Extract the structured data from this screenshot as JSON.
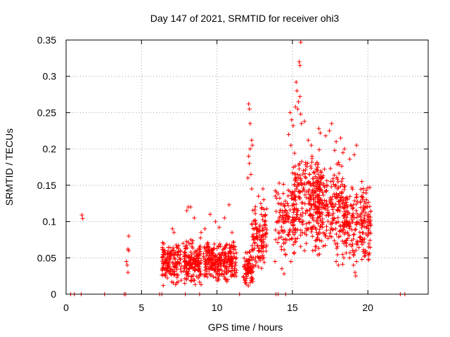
{
  "chart_data": {
    "type": "scatter",
    "title": "Day 147 of 2021, SRMTID for receiver ohi3",
    "xlabel": "GPS time / hours",
    "ylabel": "SRMTID / TECUs",
    "xlim": [
      0,
      24
    ],
    "ylim": [
      0,
      0.35
    ],
    "x_ticks": [
      "0",
      "5",
      "10",
      "15",
      "20"
    ],
    "y_ticks": [
      "0",
      "0.05",
      "0.1",
      "0.15",
      "0.2",
      "0.25",
      "0.3",
      "0.35"
    ],
    "grid": true,
    "marker": "+",
    "series": [
      {
        "name": "SRMTID",
        "color": "#ff0000",
        "points": [
          [
            0.3,
            0
          ],
          [
            0.55,
            0
          ],
          [
            1.0,
            0
          ],
          [
            2.55,
            0
          ],
          [
            3.85,
            0
          ],
          [
            3.95,
            0
          ],
          [
            6.2,
            0
          ],
          [
            6.35,
            0
          ],
          [
            7.9,
            0
          ],
          [
            8.85,
            0
          ],
          [
            11.5,
            0
          ],
          [
            13.9,
            0
          ],
          [
            14.05,
            0
          ],
          [
            14.55,
            0
          ],
          [
            22.15,
            0
          ],
          [
            22.45,
            0
          ],
          [
            1.05,
            0.109
          ],
          [
            1.1,
            0.104
          ],
          [
            4.0,
            0.045
          ],
          [
            4.05,
            0.04
          ],
          [
            4.1,
            0.062
          ],
          [
            4.15,
            0.08
          ],
          [
            4.1,
            0.03
          ],
          [
            4.15,
            0.06
          ],
          [
            10.8,
            0.123
          ],
          [
            14.05,
            0.138
          ],
          [
            15.25,
            0.292
          ],
          [
            15.55,
            0.347
          ],
          [
            15.45,
            0.32
          ],
          [
            15.5,
            0.315
          ],
          [
            12.1,
            0.262
          ],
          [
            12.15,
            0.255
          ],
          [
            12.2,
            0.235
          ],
          [
            12.15,
            0.18
          ],
          [
            12.25,
            0.165
          ],
          [
            12.3,
            0.145
          ],
          [
            12.2,
            0.2
          ],
          [
            12.35,
            0.205
          ],
          [
            12.05,
            0.16
          ],
          [
            12.1,
            0.19
          ],
          [
            12.3,
            0.212
          ],
          [
            15.3,
            0.28
          ],
          [
            15.4,
            0.265
          ],
          [
            15.35,
            0.255
          ],
          [
            15.6,
            0.235
          ],
          [
            15.55,
            0.248
          ],
          [
            15.2,
            0.258
          ],
          [
            15.5,
            0.272
          ],
          [
            15.8,
            0.238
          ],
          [
            14.85,
            0.25
          ],
          [
            14.95,
            0.24
          ],
          [
            14.75,
            0.22
          ],
          [
            14.9,
            0.205
          ],
          [
            15.05,
            0.232
          ],
          [
            17.6,
            0.235
          ],
          [
            17.45,
            0.225
          ],
          [
            17.2,
            0.218
          ],
          [
            16.75,
            0.228
          ],
          [
            16.85,
            0.222
          ],
          [
            17.9,
            0.21
          ],
          [
            18.2,
            0.215
          ],
          [
            18.45,
            0.2
          ],
          [
            19.25,
            0.205
          ],
          [
            19.1,
            0.192
          ],
          [
            18.8,
            0.186
          ],
          [
            18.35,
            0.195
          ],
          [
            17.8,
            0.198
          ],
          [
            16.25,
            0.205
          ],
          [
            16.05,
            0.212
          ],
          [
            16.3,
            0.19
          ],
          [
            13.05,
            0.145
          ],
          [
            13.1,
            0.13
          ],
          [
            12.95,
            0.118
          ],
          [
            13.2,
            0.108
          ],
          [
            12.85,
            0.095
          ],
          [
            12.75,
            0.135
          ],
          [
            12.9,
            0.125
          ],
          [
            19.7,
            0.14
          ],
          [
            19.9,
            0.13
          ],
          [
            19.85,
            0.125
          ],
          [
            19.75,
            0.118
          ],
          [
            20.05,
            0.11
          ],
          [
            19.95,
            0.12
          ],
          [
            20.1,
            0.1
          ],
          [
            19.6,
            0.155
          ],
          [
            7.05,
            0.09
          ],
          [
            7.15,
            0.085
          ],
          [
            8.0,
            0.115
          ],
          [
            8.1,
            0.12
          ],
          [
            8.25,
            0.12
          ],
          [
            8.5,
            0.105
          ],
          [
            9.55,
            0.11
          ],
          [
            9.9,
            0.1
          ],
          [
            10.15,
            0.092
          ],
          [
            10.5,
            0.105
          ],
          [
            11.0,
            0.085
          ],
          [
            9.2,
            0.09
          ],
          [
            8.95,
            0.085
          ],
          [
            7.75,
            0.07
          ],
          [
            20.05,
            0.065
          ],
          [
            19.85,
            0.06
          ],
          [
            19.25,
            0.045
          ],
          [
            19.05,
            0.04
          ],
          [
            19.15,
            0.03
          ],
          [
            19.2,
            0.025
          ],
          [
            18.05,
            0.04
          ],
          [
            17.9,
            0.045
          ],
          [
            16.8,
            0.055
          ],
          [
            16.35,
            0.06
          ],
          [
            15.8,
            0.06
          ],
          [
            14.9,
            0.045
          ],
          [
            14.55,
            0.055
          ],
          [
            14.4,
            0.075
          ],
          [
            14.3,
            0.035
          ],
          [
            14.45,
            0.028
          ],
          [
            13.85,
            0.045
          ]
        ],
        "clusters": [
          {
            "x": [
              6.35,
              7.65
            ],
            "y": [
              0.01,
              0.075
            ],
            "count": 150,
            "seed": 11
          },
          {
            "x": [
              7.8,
              8.95
            ],
            "y": [
              0.01,
              0.08
            ],
            "count": 160,
            "seed": 23
          },
          {
            "x": [
              9.1,
              11.3
            ],
            "y": [
              0.015,
              0.075
            ],
            "count": 280,
            "seed": 37
          },
          {
            "x": [
              11.75,
              12.4
            ],
            "y": [
              0.01,
              0.06
            ],
            "count": 80,
            "seed": 41
          },
          {
            "x": [
              12.3,
              13.3
            ],
            "y": [
              0.03,
              0.13
            ],
            "count": 120,
            "seed": 53
          },
          {
            "x": [
              13.85,
              15.2
            ],
            "y": [
              0.04,
              0.16
            ],
            "count": 110,
            "seed": 61
          },
          {
            "x": [
              15.0,
              16.9
            ],
            "y": [
              0.06,
              0.2
            ],
            "count": 240,
            "seed": 71
          },
          {
            "x": [
              16.5,
              18.6
            ],
            "y": [
              0.05,
              0.19
            ],
            "count": 240,
            "seed": 83
          },
          {
            "x": [
              18.3,
              20.2
            ],
            "y": [
              0.04,
              0.15
            ],
            "count": 200,
            "seed": 97
          }
        ]
      }
    ]
  }
}
